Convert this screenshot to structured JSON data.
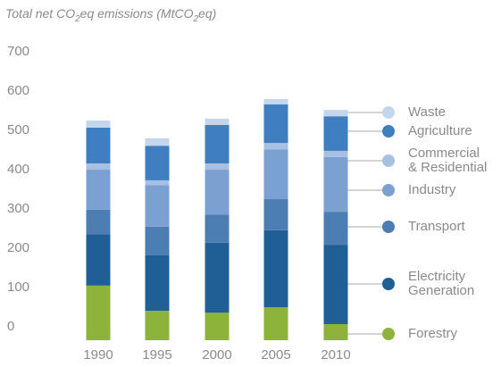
{
  "chart_data": {
    "type": "stacked_bar",
    "title": "Total net CO2eq emissions (MtCO2eq)",
    "categories": [
      "1990",
      "1995",
      "2000",
      "2005",
      "2010"
    ],
    "series": [
      {
        "name": "Forestry",
        "color": "#8db33a",
        "values": [
          139,
          75,
          70,
          84,
          41
        ]
      },
      {
        "name": "Electricity Generation",
        "color": "#1f5f96",
        "values": [
          131,
          141,
          178,
          196,
          202
        ]
      },
      {
        "name": "Transport",
        "color": "#4c7db3",
        "values": [
          62,
          73,
          72,
          79,
          84
        ]
      },
      {
        "name": "Industry",
        "color": "#7aa1d2",
        "values": [
          102,
          106,
          114,
          127,
          139
        ]
      },
      {
        "name": "Commercial & Residential",
        "color": "#a7c0e2",
        "values": [
          16,
          12,
          16,
          16,
          16
        ]
      },
      {
        "name": "Agriculture",
        "color": "#3f7fc1",
        "values": [
          91,
          88,
          98,
          98,
          88
        ]
      },
      {
        "name": "Waste",
        "color": "#c4d6ec",
        "values": [
          18,
          19,
          16,
          14,
          16
        ]
      }
    ],
    "ylim": [
      0,
      700
    ],
    "yticks": [
      0,
      100,
      200,
      300,
      400,
      500,
      600,
      700
    ]
  }
}
